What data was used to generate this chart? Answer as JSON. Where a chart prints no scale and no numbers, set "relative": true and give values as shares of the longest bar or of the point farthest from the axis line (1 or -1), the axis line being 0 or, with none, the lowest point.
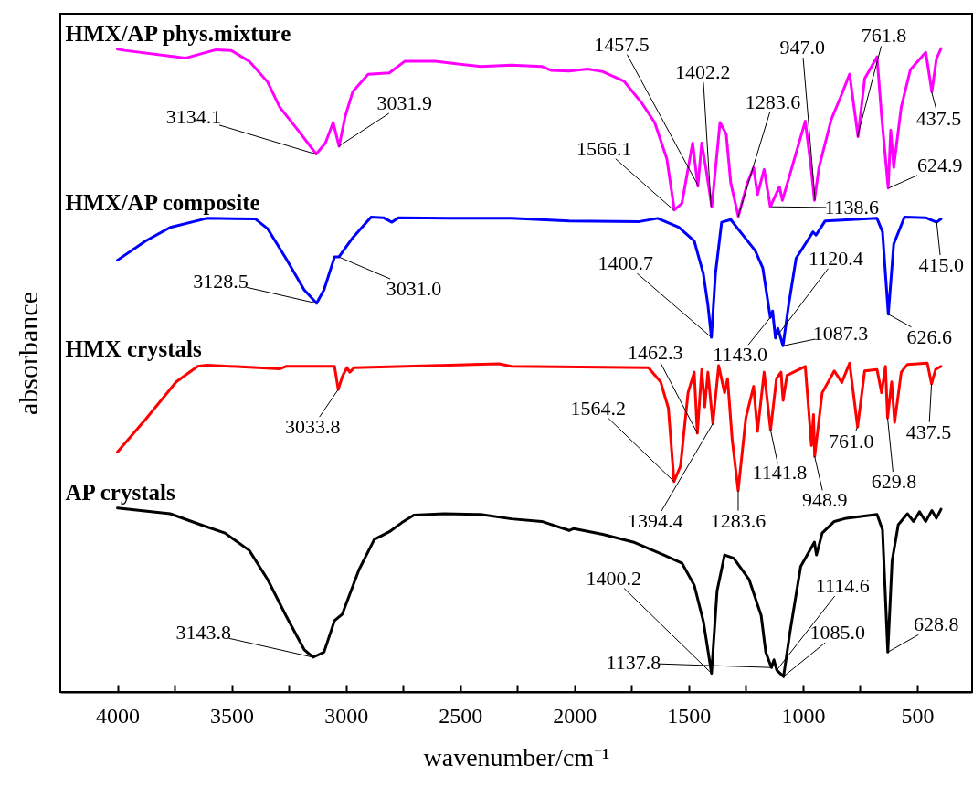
{
  "chart_data": {
    "type": "line",
    "relative": true,
    "xlabel": "wavenumber/cm⁻¹",
    "ylabel": "absorbance",
    "xlim": [
      4250,
      260
    ],
    "xticks": [
      4000,
      {
        "value": 3750,
        "label": null
      },
      3500,
      {
        "value": 3250,
        "label": null
      },
      3000,
      {
        "value": 2750,
        "label": null
      },
      2500,
      {
        "value": 2250,
        "label": null
      },
      2000,
      {
        "value": 1750,
        "label": null
      },
      1500,
      {
        "value": 1250,
        "label": null
      },
      1000,
      {
        "value": 750,
        "label": null
      },
      500
    ],
    "grid": false,
    "marker": "none",
    "line_style": "solid",
    "series": [
      {
        "name": "HMX/AP phys.mixture",
        "color": "#ff00ff",
        "x": [
          4000,
          3969,
          3703,
          3569,
          3503,
          3423,
          3343,
          3290,
          3210,
          3130,
          3090,
          3056,
          3030,
          3003,
          2970,
          2903,
          2810,
          2743,
          2610,
          2410,
          2276,
          2143,
          2103,
          2023,
          1943,
          1876,
          1783,
          1703,
          1649,
          1596,
          1563,
          1530,
          1483,
          1460,
          1443,
          1423,
          1399,
          1363,
          1336,
          1316,
          1283,
          1243,
          1216,
          1199,
          1170,
          1143,
          1103,
          1090,
          990,
          963,
          950,
          930,
          876,
          836,
          796,
          759,
          730,
          676,
          656,
          627,
          616,
          603,
          570,
          530,
          463,
          436,
          416,
          396
        ],
        "values": [
          0.999,
          0.997,
          0.985,
          0.998,
          0.997,
          0.98,
          0.948,
          0.909,
          0.873,
          0.836,
          0.853,
          0.885,
          0.848,
          0.895,
          0.933,
          0.96,
          0.962,
          0.98,
          0.98,
          0.972,
          0.974,
          0.972,
          0.966,
          0.965,
          0.968,
          0.964,
          0.949,
          0.914,
          0.885,
          0.829,
          0.749,
          0.759,
          0.853,
          0.786,
          0.853,
          0.81,
          0.754,
          0.885,
          0.867,
          0.791,
          0.739,
          0.791,
          0.815,
          0.773,
          0.812,
          0.754,
          0.785,
          0.764,
          0.887,
          0.81,
          0.764,
          0.815,
          0.89,
          0.924,
          0.96,
          0.863,
          0.953,
          0.987,
          0.895,
          0.783,
          0.873,
          0.815,
          0.909,
          0.967,
          0.994,
          0.933,
          0.984,
          1.0
        ]
      },
      {
        "name": "HMX/AP composite",
        "color": "#0000ff",
        "x": [
          4000,
          3876,
          3769,
          3609,
          3396,
          3343,
          3263,
          3183,
          3128.5,
          3096,
          3050,
          3031,
          2970,
          2890,
          2836,
          2799,
          2770,
          2543,
          2276,
          2023,
          1716,
          1636,
          1543,
          1476,
          1436,
          1416,
          1400.7,
          1383,
          1356,
          1316,
          1263,
          1209,
          1176,
          1143,
          1133,
          1120.4,
          1110,
          1087.3,
          1063,
          1030,
          956,
          943,
          903,
          676,
          652,
          626.6,
          603,
          556,
          463,
          415,
          396
        ],
        "values": [
          0.671,
          0.701,
          0.722,
          0.736,
          0.735,
          0.72,
          0.674,
          0.625,
          0.604,
          0.625,
          0.676,
          0.676,
          0.706,
          0.738,
          0.737,
          0.73,
          0.737,
          0.736,
          0.736,
          0.732,
          0.731,
          0.736,
          0.722,
          0.701,
          0.65,
          0.601,
          0.551,
          0.65,
          0.73,
          0.734,
          0.71,
          0.686,
          0.659,
          0.582,
          0.592,
          0.55,
          0.565,
          0.538,
          0.601,
          0.674,
          0.715,
          0.71,
          0.732,
          0.736,
          0.715,
          0.587,
          0.696,
          0.738,
          0.737,
          0.73,
          0.735
        ]
      },
      {
        "name": "HMX crystals",
        "color": "#ff0000",
        "x": [
          4000,
          3876,
          3743,
          3649,
          3609,
          3290,
          3263,
          3050,
          3033.8,
          3016,
          2996,
          2983,
          2963,
          2330,
          2276,
          1676,
          1623,
          1589,
          1564.2,
          1536,
          1503,
          1476,
          1462.3,
          1443,
          1430,
          1416,
          1394.4,
          1369,
          1343,
          1330,
          1310,
          1283.6,
          1250,
          1216,
          1199,
          1170,
          1141.8,
          1116,
          1096,
          1087,
          1070,
          990,
          963,
          954,
          948.9,
          916,
          863,
          830,
          796,
          761,
          730,
          676,
          656,
          639,
          629.8,
          612,
          599,
          570,
          543,
          456,
          437.5,
          420,
          396
        ],
        "values": [
          0.373,
          0.424,
          0.482,
          0.506,
          0.508,
          0.502,
          0.506,
          0.506,
          0.47,
          0.49,
          0.504,
          0.497,
          0.504,
          0.51,
          0.506,
          0.504,
          0.482,
          0.441,
          0.327,
          0.351,
          0.465,
          0.497,
          0.402,
          0.501,
          0.443,
          0.497,
          0.417,
          0.507,
          0.465,
          0.487,
          0.393,
          0.313,
          0.426,
          0.475,
          0.405,
          0.497,
          0.407,
          0.487,
          0.497,
          0.453,
          0.492,
          0.506,
          0.383,
          0.431,
          0.366,
          0.465,
          0.499,
          0.481,
          0.511,
          0.412,
          0.499,
          0.501,
          0.465,
          0.506,
          0.426,
          0.482,
          0.419,
          0.497,
          0.509,
          0.511,
          0.479,
          0.501,
          0.506
        ]
      },
      {
        "name": "AP crystals",
        "color": "#000000",
        "x": [
          4000,
          3769,
          3636,
          3529,
          3423,
          3343,
          3263,
          3183,
          3143.8,
          3096,
          3050,
          3016,
          2943,
          2876,
          2810,
          2756,
          2703,
          2570,
          2410,
          2276,
          2143,
          2023,
          2003,
          1876,
          1743,
          1609,
          1529,
          1476,
          1436,
          1400.2,
          1376,
          1343,
          1303,
          1236,
          1183,
          1163,
          1137.8,
          1127,
          1114.6,
          1085,
          1056,
          1010,
          950,
          941,
          916,
          863,
          810,
          676,
          652,
          628.8,
          610,
          583,
          543,
          516,
          490,
          463,
          436,
          416,
          396
        ],
        "values": [
          0.286,
          0.277,
          0.26,
          0.247,
          0.22,
          0.175,
          0.119,
          0.066,
          0.054,
          0.062,
          0.111,
          0.121,
          0.19,
          0.237,
          0.249,
          0.263,
          0.275,
          0.277,
          0.276,
          0.269,
          0.265,
          0.251,
          0.254,
          0.245,
          0.233,
          0.213,
          0.2,
          0.166,
          0.11,
          0.029,
          0.157,
          0.213,
          0.208,
          0.175,
          0.119,
          0.062,
          0.038,
          0.05,
          0.034,
          0.024,
          0.095,
          0.195,
          0.233,
          0.213,
          0.247,
          0.265,
          0.27,
          0.276,
          0.252,
          0.062,
          0.204,
          0.26,
          0.277,
          0.265,
          0.28,
          0.265,
          0.282,
          0.27,
          0.284
        ]
      }
    ],
    "annotations": [
      {
        "text": "3134.1",
        "x": 3134.1,
        "y": 0.836
      },
      {
        "text": "3031.9",
        "x": 3031.9,
        "y": 0.848
      },
      {
        "text": "1566.1",
        "x": 1566.1,
        "y": 0.749
      },
      {
        "text": "1457.5",
        "x": 1457.5,
        "y": 0.786
      },
      {
        "text": "1402.2",
        "x": 1402.2,
        "y": 0.754
      },
      {
        "text": "1283.6",
        "x": 1283.6,
        "y": 0.739
      },
      {
        "text": "1138.6",
        "x": 1138.6,
        "y": 0.754
      },
      {
        "text": "947.0",
        "x": 947.0,
        "y": 0.764
      },
      {
        "text": "761.8",
        "x": 761.8,
        "y": 0.863
      },
      {
        "text": "624.9",
        "x": 624.9,
        "y": 0.783
      },
      {
        "text": "437.5",
        "x": 437.5,
        "y": 0.933
      },
      {
        "text": "3128.5",
        "x": 3128.5,
        "y": 0.604
      },
      {
        "text": "3031.0",
        "x": 3031.0,
        "y": 0.676
      },
      {
        "text": "1400.7",
        "x": 1400.7,
        "y": 0.551
      },
      {
        "text": "1120.4",
        "x": 1120.4,
        "y": 0.55
      },
      {
        "text": "1143.0",
        "x": 1143.0,
        "y": 0.582
      },
      {
        "text": "1087.3",
        "x": 1087.3,
        "y": 0.538
      },
      {
        "text": "626.6",
        "x": 626.6,
        "y": 0.587
      },
      {
        "text": "415.0",
        "x": 415.0,
        "y": 0.73
      },
      {
        "text": "3033.8",
        "x": 3033.8,
        "y": 0.47
      },
      {
        "text": "1462.3",
        "x": 1462.3,
        "y": 0.402
      },
      {
        "text": "1564.2",
        "x": 1564.2,
        "y": 0.327
      },
      {
        "text": "1394.4",
        "x": 1394.4,
        "y": 0.417
      },
      {
        "text": "1283.6",
        "x": 1283.6,
        "y": 0.313
      },
      {
        "text": "1141.8",
        "x": 1141.8,
        "y": 0.407
      },
      {
        "text": "948.9",
        "x": 948.9,
        "y": 0.366
      },
      {
        "text": "761.0",
        "x": 761.0,
        "y": 0.412
      },
      {
        "text": "629.8",
        "x": 629.8,
        "y": 0.426
      },
      {
        "text": "437.5",
        "x": 437.5,
        "y": 0.479
      },
      {
        "text": "3143.8",
        "x": 3143.8,
        "y": 0.054
      },
      {
        "text": "1400.2",
        "x": 1400.2,
        "y": 0.029
      },
      {
        "text": "1137.8",
        "x": 1137.8,
        "y": 0.038
      },
      {
        "text": "1114.6",
        "x": 1114.6,
        "y": 0.034
      },
      {
        "text": "1085.0",
        "x": 1085.0,
        "y": 0.024
      },
      {
        "text": "628.8",
        "x": 628.8,
        "y": 0.062
      }
    ]
  }
}
